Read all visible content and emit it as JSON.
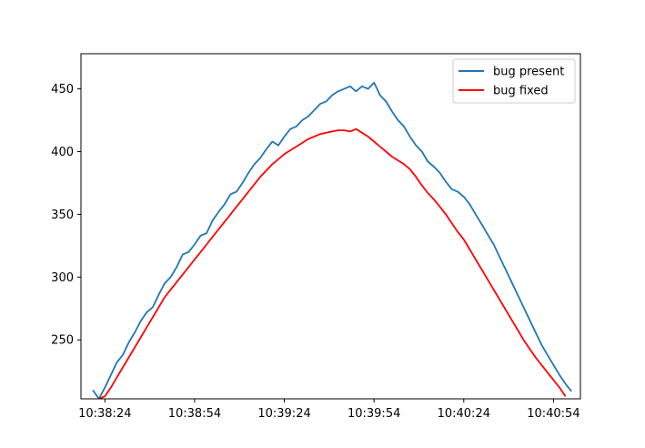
{
  "chart_data": {
    "type": "line",
    "title": "",
    "xlabel": "",
    "ylabel": "",
    "xlim": [
      "10:38:16",
      "10:41:03"
    ],
    "ylim": [
      203,
      478
    ],
    "x_ticks": [
      "10:38:24",
      "10:38:54",
      "10:39:24",
      "10:39:54",
      "10:40:24",
      "10:40:54"
    ],
    "y_ticks": [
      250,
      300,
      350,
      400,
      450
    ],
    "grid": false,
    "legend_position": "top-right",
    "series": [
      {
        "name": "bug present",
        "color": "#1f77b4",
        "points": [
          [
            "10:38:20",
            210
          ],
          [
            "10:38:22",
            203
          ],
          [
            "10:38:24",
            212
          ],
          [
            "10:38:26",
            222
          ],
          [
            "10:38:28",
            232
          ],
          [
            "10:38:30",
            238
          ],
          [
            "10:38:32",
            248
          ],
          [
            "10:38:34",
            256
          ],
          [
            "10:38:36",
            265
          ],
          [
            "10:38:38",
            272
          ],
          [
            "10:38:40",
            276
          ],
          [
            "10:38:42",
            286
          ],
          [
            "10:38:44",
            295
          ],
          [
            "10:38:46",
            300
          ],
          [
            "10:38:48",
            308
          ],
          [
            "10:38:50",
            318
          ],
          [
            "10:38:52",
            320
          ],
          [
            "10:38:54",
            326
          ],
          [
            "10:38:56",
            333
          ],
          [
            "10:38:58",
            335
          ],
          [
            "10:39:00",
            345
          ],
          [
            "10:39:02",
            352
          ],
          [
            "10:39:04",
            358
          ],
          [
            "10:39:06",
            366
          ],
          [
            "10:39:08",
            368
          ],
          [
            "10:39:10",
            375
          ],
          [
            "10:39:12",
            383
          ],
          [
            "10:39:14",
            390
          ],
          [
            "10:39:16",
            395
          ],
          [
            "10:39:18",
            402
          ],
          [
            "10:39:20",
            408
          ],
          [
            "10:39:22",
            405
          ],
          [
            "10:39:24",
            412
          ],
          [
            "10:39:26",
            418
          ],
          [
            "10:39:28",
            420
          ],
          [
            "10:39:30",
            425
          ],
          [
            "10:39:32",
            428
          ],
          [
            "10:39:34",
            433
          ],
          [
            "10:39:36",
            438
          ],
          [
            "10:39:38",
            440
          ],
          [
            "10:39:40",
            445
          ],
          [
            "10:39:42",
            448
          ],
          [
            "10:39:44",
            450
          ],
          [
            "10:39:46",
            452
          ],
          [
            "10:39:48",
            448
          ],
          [
            "10:39:50",
            452
          ],
          [
            "10:39:52",
            450
          ],
          [
            "10:39:54",
            455
          ],
          [
            "10:39:56",
            445
          ],
          [
            "10:39:58",
            440
          ],
          [
            "10:40:00",
            432
          ],
          [
            "10:40:02",
            425
          ],
          [
            "10:40:04",
            420
          ],
          [
            "10:40:06",
            412
          ],
          [
            "10:40:08",
            405
          ],
          [
            "10:40:10",
            400
          ],
          [
            "10:40:12",
            392
          ],
          [
            "10:40:14",
            388
          ],
          [
            "10:40:16",
            383
          ],
          [
            "10:40:18",
            376
          ],
          [
            "10:40:20",
            370
          ],
          [
            "10:40:22",
            368
          ],
          [
            "10:40:24",
            364
          ],
          [
            "10:40:26",
            358
          ],
          [
            "10:40:28",
            350
          ],
          [
            "10:40:30",
            342
          ],
          [
            "10:40:32",
            334
          ],
          [
            "10:40:34",
            326
          ],
          [
            "10:40:36",
            316
          ],
          [
            "10:40:38",
            306
          ],
          [
            "10:40:40",
            296
          ],
          [
            "10:40:42",
            286
          ],
          [
            "10:40:44",
            276
          ],
          [
            "10:40:46",
            266
          ],
          [
            "10:40:48",
            256
          ],
          [
            "10:40:50",
            246
          ],
          [
            "10:40:52",
            238
          ],
          [
            "10:40:54",
            230
          ],
          [
            "10:40:56",
            222
          ],
          [
            "10:40:58",
            215
          ],
          [
            "10:41:00",
            209
          ]
        ]
      },
      {
        "name": "bug fixed",
        "color": "#ff0000",
        "points": [
          [
            "10:38:22",
            203
          ],
          [
            "10:38:24",
            205
          ],
          [
            "10:38:26",
            212
          ],
          [
            "10:38:28",
            220
          ],
          [
            "10:38:30",
            228
          ],
          [
            "10:38:32",
            236
          ],
          [
            "10:38:34",
            244
          ],
          [
            "10:38:36",
            252
          ],
          [
            "10:38:38",
            260
          ],
          [
            "10:38:40",
            268
          ],
          [
            "10:38:42",
            276
          ],
          [
            "10:38:44",
            284
          ],
          [
            "10:38:46",
            290
          ],
          [
            "10:38:48",
            296
          ],
          [
            "10:38:50",
            302
          ],
          [
            "10:38:52",
            308
          ],
          [
            "10:38:54",
            314
          ],
          [
            "10:38:56",
            320
          ],
          [
            "10:38:58",
            326
          ],
          [
            "10:39:00",
            332
          ],
          [
            "10:39:02",
            338
          ],
          [
            "10:39:04",
            344
          ],
          [
            "10:39:06",
            350
          ],
          [
            "10:39:08",
            356
          ],
          [
            "10:39:10",
            362
          ],
          [
            "10:39:12",
            368
          ],
          [
            "10:39:14",
            374
          ],
          [
            "10:39:16",
            380
          ],
          [
            "10:39:18",
            385
          ],
          [
            "10:39:20",
            390
          ],
          [
            "10:39:22",
            394
          ],
          [
            "10:39:24",
            398
          ],
          [
            "10:39:26",
            401
          ],
          [
            "10:39:28",
            404
          ],
          [
            "10:39:30",
            407
          ],
          [
            "10:39:32",
            410
          ],
          [
            "10:39:34",
            412
          ],
          [
            "10:39:36",
            414
          ],
          [
            "10:39:38",
            415
          ],
          [
            "10:39:40",
            416
          ],
          [
            "10:39:42",
            417
          ],
          [
            "10:39:44",
            417
          ],
          [
            "10:39:46",
            416
          ],
          [
            "10:39:48",
            418
          ],
          [
            "10:39:50",
            415
          ],
          [
            "10:39:52",
            412
          ],
          [
            "10:39:54",
            408
          ],
          [
            "10:39:56",
            404
          ],
          [
            "10:39:58",
            400
          ],
          [
            "10:40:00",
            396
          ],
          [
            "10:40:02",
            393
          ],
          [
            "10:40:04",
            390
          ],
          [
            "10:40:06",
            386
          ],
          [
            "10:40:08",
            380
          ],
          [
            "10:40:10",
            373
          ],
          [
            "10:40:12",
            367
          ],
          [
            "10:40:14",
            362
          ],
          [
            "10:40:16",
            356
          ],
          [
            "10:40:18",
            350
          ],
          [
            "10:40:20",
            343
          ],
          [
            "10:40:22",
            336
          ],
          [
            "10:40:24",
            330
          ],
          [
            "10:40:26",
            322
          ],
          [
            "10:40:28",
            314
          ],
          [
            "10:40:30",
            306
          ],
          [
            "10:40:32",
            298
          ],
          [
            "10:40:34",
            290
          ],
          [
            "10:40:36",
            282
          ],
          [
            "10:40:38",
            274
          ],
          [
            "10:40:40",
            266
          ],
          [
            "10:40:42",
            258
          ],
          [
            "10:40:44",
            250
          ],
          [
            "10:40:46",
            243
          ],
          [
            "10:40:48",
            236
          ],
          [
            "10:40:50",
            230
          ],
          [
            "10:40:52",
            224
          ],
          [
            "10:40:54",
            218
          ],
          [
            "10:40:56",
            212
          ],
          [
            "10:40:58",
            205
          ]
        ]
      }
    ]
  }
}
